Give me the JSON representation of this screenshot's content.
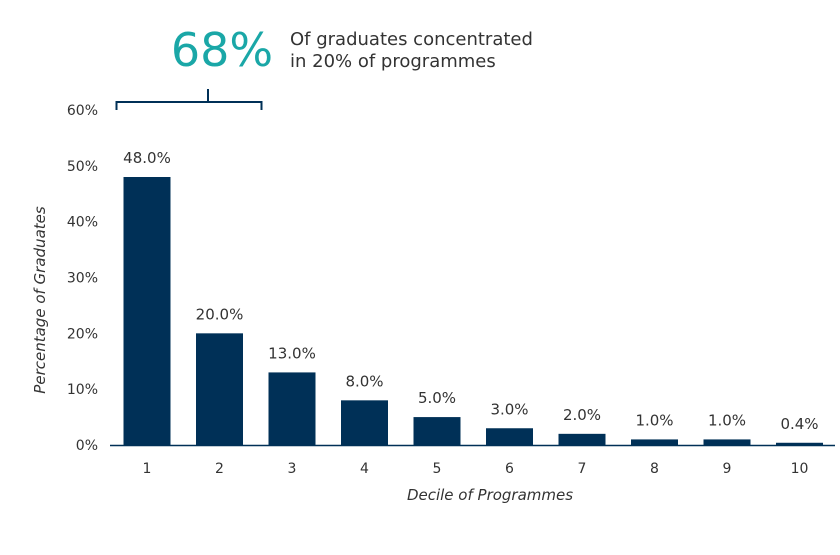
{
  "chart_data": {
    "type": "bar",
    "categories": [
      "1",
      "2",
      "3",
      "4",
      "5",
      "6",
      "7",
      "8",
      "9",
      "10"
    ],
    "values": [
      48.0,
      20.0,
      13.0,
      8.0,
      5.0,
      3.0,
      2.0,
      1.0,
      1.0,
      0.4
    ],
    "data_labels": [
      "48.0%",
      "20.0%",
      "13.0%",
      "8.0%",
      "5.0%",
      "3.0%",
      "2.0%",
      "1.0%",
      "1.0%",
      "0.4%"
    ],
    "xlabel": "Decile of Programmes",
    "ylabel": "Percentage of Graduates",
    "ylim": [
      0,
      60
    ],
    "yticks": [
      0,
      10,
      20,
      30,
      40,
      50,
      60
    ],
    "ytick_labels": [
      "0%",
      "10%",
      "20%",
      "30%",
      "40%",
      "50%",
      "60%"
    ],
    "grid": false,
    "bar_color": "#003057",
    "annotation": {
      "value": "68%",
      "text_line1": "Of graduates concentrated",
      "text_line2": "in 20% of programmes",
      "bracket_categories": [
        "1",
        "3"
      ],
      "color": "#1aa7a7",
      "bracket_color": "#003057"
    }
  }
}
